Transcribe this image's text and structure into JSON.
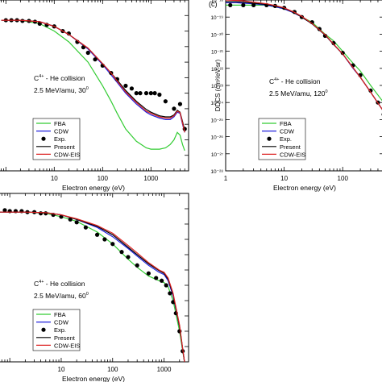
{
  "chart_data": [
    {
      "type": "line",
      "panel_label": "",
      "collision": {
        "ion": "C",
        "charge": "4+",
        "rest": " - He collision"
      },
      "energy_line": {
        "text": "2.5 MeV/amu, 30",
        "deg": "0"
      },
      "xlabel": "Electron energy (eV)",
      "ylabel": "",
      "xscale": "log",
      "xlim": [
        0.7,
        6000
      ],
      "yscale": "log",
      "ylim": [
        1e-28,
        1e-17
      ],
      "x_ticks": [
        "10",
        "100",
        "1000"
      ],
      "y_ticks": [],
      "legend": [
        "FBA",
        "CDW",
        "Exp.",
        "Present",
        "CDW-EIS"
      ],
      "legend_position": "bottom-left",
      "series": [
        {
          "name": "FBA",
          "kind": "line",
          "color": "#33cc33",
          "x": [
            0.8,
            2,
            5,
            10,
            20,
            50,
            100,
            150,
            200,
            300,
            500,
            800,
            1000,
            1500,
            2000,
            2500,
            3000,
            3500,
            4000,
            4500,
            5000
          ],
          "y": [
            5e-19,
            5e-19,
            3e-19,
            1e-19,
            2e-20,
            1e-21,
            3e-23,
            3e-24,
            5e-25,
            5e-26,
            8e-27,
            3e-27,
            2.5e-27,
            2.5e-27,
            3e-27,
            5e-27,
            1e-26,
            3e-26,
            2e-26,
            5e-27,
            2e-27
          ]
        },
        {
          "name": "CDW",
          "kind": "line",
          "color": "#2222dd",
          "x": [
            0.8,
            2,
            5,
            10,
            20,
            50,
            100,
            150,
            200,
            300,
            500,
            800,
            1000,
            1500,
            2000,
            2500,
            3000,
            3500,
            4000,
            4500,
            5000
          ],
          "y": [
            5e-19,
            5e-19,
            4e-19,
            2e-19,
            6e-20,
            7e-21,
            7e-22,
            1.5e-22,
            5e-23,
            1e-23,
            2e-24,
            6e-25,
            4e-25,
            2.5e-25,
            2e-25,
            2e-25,
            3e-25,
            6e-25,
            5e-25,
            1e-25,
            3e-26
          ]
        },
        {
          "name": "Exp.",
          "kind": "points",
          "color": "#000000",
          "x": [
            1,
            1.3,
            1.7,
            2.2,
            3,
            4,
            5,
            7,
            10,
            15,
            20,
            30,
            40,
            50,
            70,
            100,
            150,
            200,
            300,
            400,
            500,
            600,
            800,
            1000,
            1200,
            1500,
            2000,
            3000,
            4000,
            5000
          ],
          "y": [
            5e-19,
            5e-19,
            5e-19,
            4.5e-19,
            4.5e-19,
            4e-19,
            3e-19,
            2.5e-19,
            2e-19,
            1e-19,
            7e-20,
            2e-20,
            9e-21,
            4e-21,
            1.5e-21,
            6e-22,
            2e-22,
            8e-23,
            3e-23,
            2e-23,
            1e-23,
            1e-23,
            1e-23,
            1e-23,
            1e-23,
            8e-24,
            3e-24,
            1e-24,
            2e-24,
            5e-26
          ]
        },
        {
          "name": "Present",
          "kind": "line",
          "color": "#000000",
          "x": [
            0.8,
            2,
            5,
            10,
            20,
            50,
            100,
            150,
            200,
            300,
            500,
            800,
            1000,
            1500,
            2000,
            2500,
            3000,
            3500,
            4000,
            4500,
            5000
          ],
          "y": [
            5e-19,
            5e-19,
            4e-19,
            2e-19,
            6e-20,
            8e-21,
            8e-22,
            2e-22,
            7e-23,
            1.5e-23,
            3e-24,
            9e-25,
            6e-25,
            3.5e-25,
            3e-25,
            3e-25,
            4e-25,
            8e-25,
            6e-25,
            1.5e-25,
            4e-26
          ]
        },
        {
          "name": "CDW-EIS",
          "kind": "line",
          "color": "#dd2222",
          "x": [
            0.8,
            2,
            5,
            10,
            20,
            50,
            100,
            150,
            200,
            300,
            500,
            800,
            1000,
            1500,
            2000,
            2500,
            3000,
            3500,
            4000,
            4500,
            5000
          ],
          "y": [
            5e-19,
            5e-19,
            4e-19,
            2e-19,
            6e-20,
            8e-21,
            8e-22,
            2e-22,
            6e-23,
            1.2e-23,
            2.5e-24,
            7e-25,
            5e-25,
            3e-25,
            2.5e-25,
            2.5e-25,
            3.5e-25,
            7e-25,
            5.5e-25,
            1.2e-25,
            3e-26
          ]
        }
      ]
    },
    {
      "type": "line",
      "panel_label": "(c)",
      "collision": {
        "ion": "C",
        "charge": "4+",
        "rest": " - He collision"
      },
      "energy_line": {
        "text": "2.5 MeV/amu, 120",
        "deg": "0"
      },
      "xlabel": "Electron energy (eV)",
      "ylabel": "DDCS (cm²/eV-sr)",
      "xscale": "log",
      "xlim": [
        1,
        500
      ],
      "yscale": "log",
      "ylim": [
        1e-28,
        1e-18
      ],
      "x_ticks": [
        "1",
        "10",
        "100"
      ],
      "y_ticks": [
        "10⁻¹⁸",
        "10⁻¹⁹",
        "10⁻²⁰",
        "10⁻²¹",
        "10⁻²²",
        "10⁻²³",
        "10⁻²⁴",
        "10⁻²⁵",
        "10⁻²⁶",
        "10⁻²⁷",
        "10⁻²⁸"
      ],
      "legend": [
        "FBA",
        "CDW",
        "Exp.",
        "Present",
        "CDW-EIS"
      ],
      "legend_position": "bottom-left",
      "series": [
        {
          "name": "FBA",
          "kind": "line",
          "color": "#33cc33",
          "x": [
            1,
            1.5,
            2,
            3,
            5,
            7,
            10,
            15,
            20,
            30,
            50,
            70,
            100,
            150,
            200,
            300,
            500
          ],
          "y": [
            5e-19,
            5e-19,
            5e-19,
            5e-19,
            5e-19,
            4e-19,
            3e-19,
            2e-19,
            1e-19,
            5e-20,
            1e-20,
            4e-21,
            1e-21,
            2e-22,
            7e-23,
            1e-23,
            1e-24
          ]
        },
        {
          "name": "CDW",
          "kind": "line",
          "color": "#2222dd",
          "x": [
            1,
            1.5,
            2,
            3,
            5,
            7,
            10,
            15,
            20,
            30,
            50,
            70,
            100,
            150,
            200,
            300,
            500
          ],
          "y": [
            7e-19,
            7e-19,
            6.5e-19,
            6e-19,
            5e-19,
            4e-19,
            3e-19,
            1.7e-19,
            1e-19,
            4e-20,
            9e-21,
            2.5e-21,
            7e-22,
            1e-22,
            3e-23,
            4e-24,
            3e-25
          ]
        },
        {
          "name": "Exp.",
          "kind": "points",
          "color": "#000000",
          "x": [
            1.2,
            2,
            3,
            5,
            7,
            10,
            15,
            20,
            30,
            40,
            50,
            70,
            100,
            150,
            200,
            300,
            400,
            500
          ],
          "y": [
            5e-19,
            5e-19,
            5e-19,
            5e-19,
            4.5e-19,
            3.5e-19,
            2e-19,
            1e-19,
            5e-20,
            2e-20,
            8e-21,
            3e-21,
            8e-22,
            1.5e-22,
            4e-23,
            5e-24,
            1e-24,
            2e-25
          ]
        },
        {
          "name": "Present",
          "kind": "line",
          "color": "#000000",
          "x": [
            1,
            1.5,
            2,
            3,
            5,
            7,
            10,
            15,
            20,
            30,
            50,
            70,
            100,
            150,
            200,
            300,
            500
          ],
          "y": [
            8e-19,
            8e-19,
            7.5e-19,
            6.5e-19,
            5.5e-19,
            4.5e-19,
            3.3e-19,
            1.8e-19,
            1e-19,
            4e-20,
            9e-21,
            2.5e-21,
            7e-22,
            1.1e-22,
            3e-23,
            4e-24,
            3e-25
          ]
        },
        {
          "name": "CDW-EIS",
          "kind": "line",
          "color": "#dd2222",
          "x": [
            1,
            1.5,
            2,
            3,
            5,
            7,
            10,
            15,
            20,
            30,
            50,
            70,
            100,
            150,
            200,
            300,
            500
          ],
          "y": [
            1e-18,
            9.5e-19,
            9e-19,
            7.5e-19,
            6e-19,
            4.8e-19,
            3.5e-19,
            1.9e-19,
            1.1e-19,
            4.2e-20,
            9.5e-21,
            2.6e-21,
            7e-22,
            1.1e-22,
            3e-23,
            4e-24,
            3e-25
          ]
        }
      ]
    },
    {
      "type": "line",
      "panel_label": "",
      "collision": {
        "ion": "C",
        "charge": "4+",
        "rest": " - He collision"
      },
      "energy_line": {
        "text": "2.5 MeV/amu, 60",
        "deg": "0"
      },
      "xlabel": "Electron energy (eV)",
      "ylabel": "",
      "xscale": "log",
      "xlim": [
        0.6,
        3000
      ],
      "yscale": "log",
      "ylim": [
        1e-28,
        1e-17
      ],
      "x_ticks": [
        "10",
        "100",
        "1000"
      ],
      "y_ticks": [],
      "legend": [
        "FBA",
        "CDW",
        "Exp.",
        "Present",
        "CDW-EIS"
      ],
      "legend_position": "bottom-left",
      "series": [
        {
          "name": "FBA",
          "kind": "line",
          "color": "#33cc33",
          "x": [
            0.6,
            2,
            5,
            10,
            20,
            50,
            100,
            200,
            300,
            500,
            800,
            1000,
            1200,
            1500,
            2000,
            2500
          ],
          "y": [
            6e-19,
            6e-19,
            5e-19,
            3e-19,
            1.5e-19,
            3e-20,
            5e-21,
            5e-22,
            1.5e-22,
            4e-23,
            2e-23,
            1.5e-23,
            8e-24,
            1e-24,
            1e-26,
            1e-28
          ]
        },
        {
          "name": "CDW",
          "kind": "line",
          "color": "#2222dd",
          "x": [
            0.6,
            2,
            5,
            10,
            20,
            50,
            100,
            200,
            300,
            500,
            800,
            1000,
            1200,
            1500,
            2000,
            2500
          ],
          "y": [
            6e-19,
            6e-19,
            5.5e-19,
            4e-19,
            2e-19,
            6e-20,
            1.5e-20,
            2.5e-21,
            8e-22,
            2e-22,
            7e-23,
            5e-23,
            2e-23,
            2e-24,
            2e-26,
            1e-28
          ]
        },
        {
          "name": "Exp.",
          "kind": "points",
          "color": "#000000",
          "x": [
            0.8,
            1,
            1.3,
            1.7,
            2.2,
            3,
            4,
            5,
            7,
            10,
            15,
            20,
            30,
            50,
            70,
            100,
            150,
            200,
            300,
            500,
            700,
            900,
            1100,
            1300,
            1500,
            1700,
            2000,
            2300
          ],
          "y": [
            8e-19,
            7e-19,
            7e-19,
            7e-19,
            6e-19,
            6e-19,
            5e-19,
            5e-19,
            4e-19,
            3e-19,
            2e-19,
            1.3e-19,
            6e-20,
            2e-20,
            1e-20,
            5e-21,
            1.5e-21,
            7e-22,
            2e-22,
            6e-23,
            3e-23,
            2e-23,
            1e-23,
            3e-24,
            8e-25,
            1.5e-25,
            1e-26,
            5e-28
          ]
        },
        {
          "name": "Present",
          "kind": "line",
          "color": "#000000",
          "x": [
            0.6,
            2,
            5,
            10,
            20,
            50,
            100,
            200,
            300,
            500,
            800,
            1000,
            1200,
            1500,
            2000,
            2500
          ],
          "y": [
            6e-19,
            6e-19,
            5.5e-19,
            4e-19,
            2e-19,
            7e-20,
            2e-20,
            3e-21,
            1e-21,
            2.5e-22,
            9e-23,
            6e-23,
            2.5e-23,
            2.5e-24,
            2e-26,
            1e-28
          ]
        },
        {
          "name": "CDW-EIS",
          "kind": "line",
          "color": "#dd2222",
          "x": [
            0.6,
            2,
            5,
            10,
            20,
            50,
            100,
            200,
            300,
            500,
            800,
            1000,
            1200,
            1500,
            2000,
            2500
          ],
          "y": [
            6e-19,
            6e-19,
            5.5e-19,
            4e-19,
            2.2e-19,
            8e-20,
            2.5e-20,
            4e-21,
            1.3e-21,
            3e-22,
            1e-22,
            7e-23,
            3e-23,
            3e-24,
            2.5e-26,
            1e-28
          ]
        }
      ]
    }
  ]
}
